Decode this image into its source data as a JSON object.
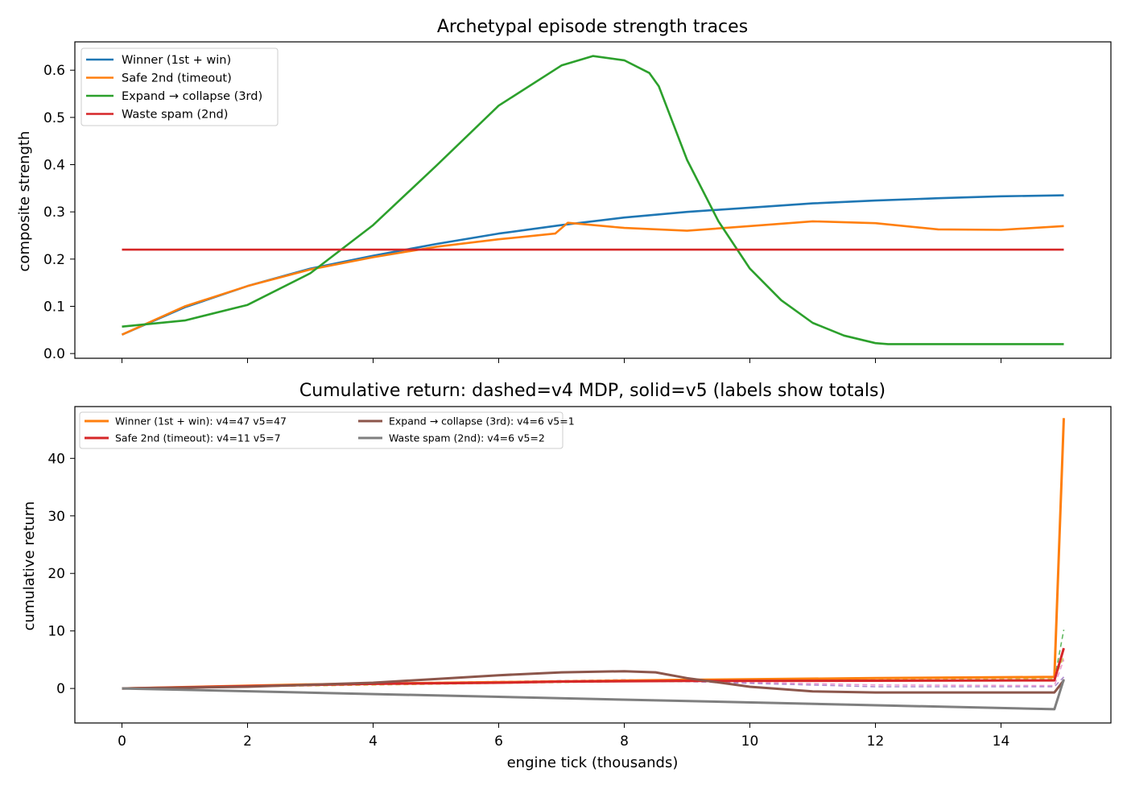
{
  "chart_data": [
    {
      "type": "line",
      "title": "Archetypal episode strength traces",
      "xlabel": "",
      "ylabel": "composite strength",
      "xlim": [
        -0.75,
        15.75
      ],
      "ylim": [
        -0.01,
        0.66
      ],
      "yticks": [
        0.0,
        0.1,
        0.2,
        0.3,
        0.4,
        0.5,
        0.6
      ],
      "ytick_labels": [
        "0.0",
        "0.1",
        "0.2",
        "0.3",
        "0.4",
        "0.5",
        "0.6"
      ],
      "xticks": [
        0,
        2,
        4,
        6,
        8,
        10,
        12,
        14
      ],
      "grid": false,
      "legend_position": "upper left",
      "series": [
        {
          "name": "Winner (1st + win)",
          "color": "#1f77b4",
          "points": [
            [
              0,
              0.04
            ],
            [
              1,
              0.098
            ],
            [
              2,
              0.143
            ],
            [
              3,
              0.18
            ],
            [
              4,
              0.207
            ],
            [
              5,
              0.232
            ],
            [
              6,
              0.254
            ],
            [
              7,
              0.272
            ],
            [
              8,
              0.288
            ],
            [
              9,
              0.3
            ],
            [
              10,
              0.309
            ],
            [
              11,
              0.318
            ],
            [
              12,
              0.324
            ],
            [
              13,
              0.329
            ],
            [
              14,
              0.333
            ],
            [
              15,
              0.335
            ]
          ]
        },
        {
          "name": "Safe 2nd (timeout)",
          "color": "#ff7f0e",
          "points": [
            [
              0,
              0.04
            ],
            [
              1,
              0.1
            ],
            [
              2,
              0.143
            ],
            [
              3,
              0.178
            ],
            [
              4,
              0.204
            ],
            [
              5,
              0.226
            ],
            [
              6,
              0.242
            ],
            [
              6.9,
              0.254
            ],
            [
              7.1,
              0.277
            ],
            [
              8,
              0.266
            ],
            [
              9,
              0.26
            ],
            [
              10,
              0.27
            ],
            [
              11,
              0.28
            ],
            [
              12,
              0.276
            ],
            [
              13,
              0.263
            ],
            [
              14,
              0.262
            ],
            [
              15,
              0.27
            ]
          ]
        },
        {
          "name": "Expand → collapse (3rd)",
          "color": "#2ca02c",
          "points": [
            [
              0,
              0.057
            ],
            [
              1,
              0.07
            ],
            [
              2,
              0.103
            ],
            [
              3,
              0.17
            ],
            [
              4,
              0.272
            ],
            [
              5,
              0.397
            ],
            [
              6,
              0.525
            ],
            [
              7,
              0.61
            ],
            [
              7.5,
              0.63
            ],
            [
              8,
              0.621
            ],
            [
              8.4,
              0.594
            ],
            [
              8.55,
              0.566
            ],
            [
              9,
              0.41
            ],
            [
              9.5,
              0.28
            ],
            [
              10,
              0.18
            ],
            [
              10.5,
              0.113
            ],
            [
              11,
              0.065
            ],
            [
              11.5,
              0.038
            ],
            [
              12,
              0.022
            ],
            [
              12.2,
              0.02
            ],
            [
              15,
              0.02
            ]
          ]
        },
        {
          "name": "Waste spam (2nd)",
          "color": "#d62728",
          "points": [
            [
              0,
              0.22
            ],
            [
              15,
              0.22
            ]
          ]
        }
      ]
    },
    {
      "type": "line",
      "title": "Cumulative return: dashed=v4 MDP, solid=v5 (labels show totals)",
      "xlabel": "engine tick (thousands)",
      "ylabel": "cumulative return",
      "xlim": [
        -0.75,
        15.75
      ],
      "ylim": [
        -6,
        49
      ],
      "yticks": [
        0,
        10,
        20,
        30,
        40
      ],
      "xticks": [
        0,
        2,
        4,
        6,
        8,
        10,
        12,
        14
      ],
      "grid": false,
      "legend_position": "upper left",
      "series": [
        {
          "name": "Winner (1st + win): v4=47 v5=47",
          "color": "#ff7f0e",
          "style": "solid",
          "points": [
            [
              0,
              0
            ],
            [
              3,
              0.7
            ],
            [
              6,
              1.1
            ],
            [
              9,
              1.5
            ],
            [
              12,
              1.8
            ],
            [
              14.85,
              2.0
            ],
            [
              15,
              47
            ]
          ]
        },
        {
          "name": "Safe 2nd (timeout): v4=11 v5=7",
          "color": "#d62728",
          "style": "solid",
          "points": [
            [
              0,
              0
            ],
            [
              2,
              0.4
            ],
            [
              4,
              0.8
            ],
            [
              6,
              1.0
            ],
            [
              7,
              1.2
            ],
            [
              9,
              1.3
            ],
            [
              12,
              1.35
            ],
            [
              14.85,
              1.4
            ],
            [
              15,
              7
            ]
          ]
        },
        {
          "name": "Expand → collapse (3rd): v4=6 v5=1",
          "color": "#8c564b",
          "style": "solid",
          "points": [
            [
              0,
              0
            ],
            [
              2,
              0.3
            ],
            [
              4,
              1.0
            ],
            [
              6,
              2.3
            ],
            [
              7,
              2.8
            ],
            [
              8,
              3.0
            ],
            [
              8.5,
              2.8
            ],
            [
              9,
              1.8
            ],
            [
              10,
              0.3
            ],
            [
              11,
              -0.5
            ],
            [
              12,
              -0.7
            ],
            [
              14.85,
              -0.7
            ],
            [
              15,
              1.4
            ]
          ]
        },
        {
          "name": "Waste spam (2nd): v4=6 v5=2",
          "color": "#7f7f7f",
          "style": "solid",
          "points": [
            [
              0,
              0
            ],
            [
              14.85,
              -3.6
            ],
            [
              15,
              1.6
            ]
          ]
        }
      ],
      "dashed_series": [
        {
          "color": "#2ca02c",
          "points": [
            [
              0,
              0
            ],
            [
              4,
              0.8
            ],
            [
              8,
              1.2
            ],
            [
              12,
              1.3
            ],
            [
              14.85,
              1.5
            ],
            [
              15,
              10.2
            ]
          ]
        },
        {
          "color": "#bcbd22",
          "points": [
            [
              0,
              0
            ],
            [
              4,
              0.6
            ],
            [
              8,
              1.2
            ],
            [
              12,
              1.5
            ],
            [
              14.85,
              1.7
            ],
            [
              15,
              5.5
            ]
          ]
        },
        {
          "color": "#e377c2",
          "points": [
            [
              0,
              0
            ],
            [
              4,
              0.9
            ],
            [
              8,
              1.5
            ],
            [
              9,
              1.3
            ],
            [
              12,
              0.6
            ],
            [
              14.85,
              0.5
            ],
            [
              15,
              5.0
            ]
          ]
        },
        {
          "color": "#9467bd",
          "points": [
            [
              0,
              0
            ],
            [
              4,
              0.9
            ],
            [
              8,
              1.5
            ],
            [
              9,
              1.2
            ],
            [
              12,
              0.3
            ],
            [
              14.85,
              0.3
            ],
            [
              15,
              2.0
            ]
          ]
        }
      ]
    }
  ]
}
